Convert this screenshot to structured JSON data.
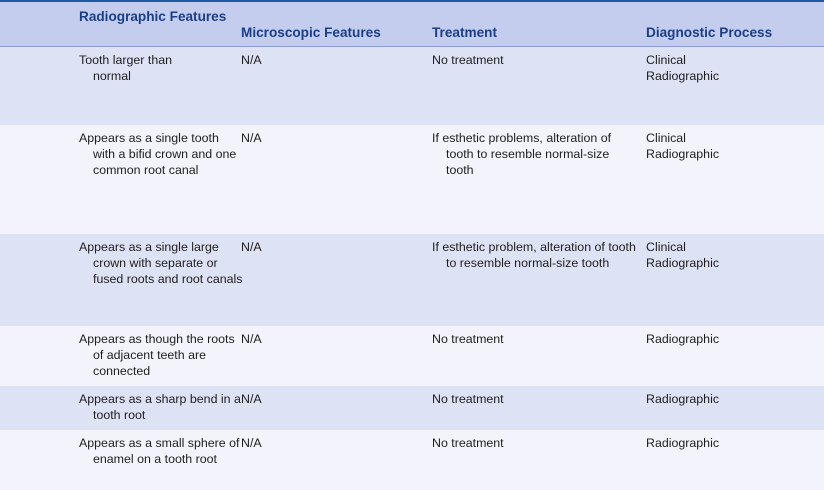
{
  "table": {
    "headers": {
      "radiographic_features": "Radiographic Features",
      "microscopic_features": "Microscopic Features",
      "treatment": "Treatment",
      "diagnostic_process": "Diagnostic Process"
    },
    "rows": [
      {
        "radiographic": "Tooth larger than normal",
        "microscopic": "N/A",
        "treatment": "No treatment",
        "diagnostic": [
          "Clinical",
          "Radiographic"
        ]
      },
      {
        "radiographic": "Appears as a single tooth with a bifid crown and one common root canal",
        "microscopic": "N/A",
        "treatment": "If esthetic problems, alteration of tooth to resemble normal-size tooth",
        "diagnostic": [
          "Clinical",
          "Radiographic"
        ]
      },
      {
        "radiographic": "Appears as a single large crown with separate or fused roots and root canals",
        "microscopic": "N/A",
        "treatment": "If esthetic problem, alteration of tooth to resemble normal-size tooth",
        "diagnostic": [
          "Clinical",
          "Radiographic"
        ]
      },
      {
        "radiographic": "Appears as though the roots of adjacent teeth are connected",
        "microscopic": "N/A",
        "treatment": "No treatment",
        "diagnostic": [
          "Radiographic"
        ]
      },
      {
        "radiographic": "Appears as a sharp bend in a tooth root",
        "microscopic": "N/A",
        "treatment": "No treatment",
        "diagnostic": [
          "Radiographic"
        ]
      },
      {
        "radiographic": "Appears as a small sphere of enamel on a tooth root",
        "microscopic": "N/A",
        "treatment": "No treatment",
        "diagnostic": [
          "Radiographic"
        ]
      }
    ]
  }
}
